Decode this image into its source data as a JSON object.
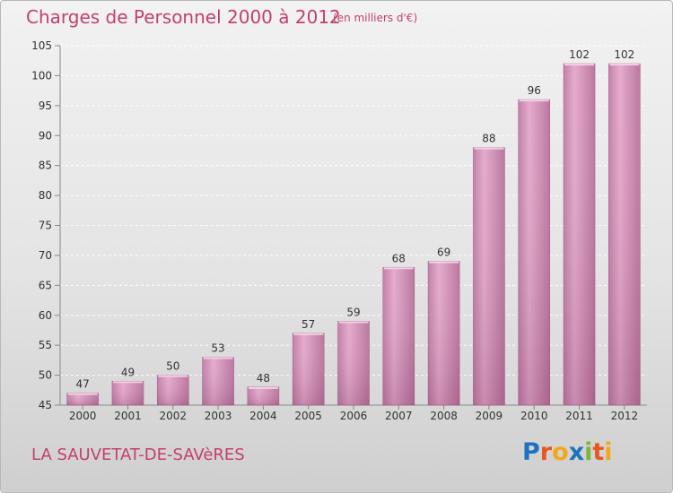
{
  "title": "Charges de Personnel 2000 à 2012",
  "subtitle": "(en milliers d'€)",
  "commune": "LA SAUVETAT-DE-SAVèRES",
  "logo": {
    "letters": [
      "P",
      "r",
      "o",
      "x",
      "i",
      "t",
      "i"
    ],
    "colors": [
      "#1e73be",
      "#e8571e",
      "#f2a81d",
      "#1e73be",
      "#7fb539",
      "#e8571e",
      "#f2a81d"
    ]
  },
  "colors": {
    "bar": "#d58ab6",
    "bar_light": "#e7b0d0",
    "bar_dark": "#b46f98",
    "text": "#c43f6e"
  },
  "chart_data": {
    "type": "bar",
    "categories": [
      "2000",
      "2001",
      "2002",
      "2003",
      "2004",
      "2005",
      "2006",
      "2007",
      "2008",
      "2009",
      "2010",
      "2011",
      "2012"
    ],
    "values": [
      47,
      49,
      50,
      53,
      48,
      57,
      59,
      68,
      69,
      88,
      96,
      102,
      102
    ],
    "ylim": [
      45,
      105
    ],
    "yticks": [
      45,
      50,
      55,
      60,
      65,
      70,
      75,
      80,
      85,
      90,
      95,
      100,
      105
    ],
    "grid": true
  }
}
